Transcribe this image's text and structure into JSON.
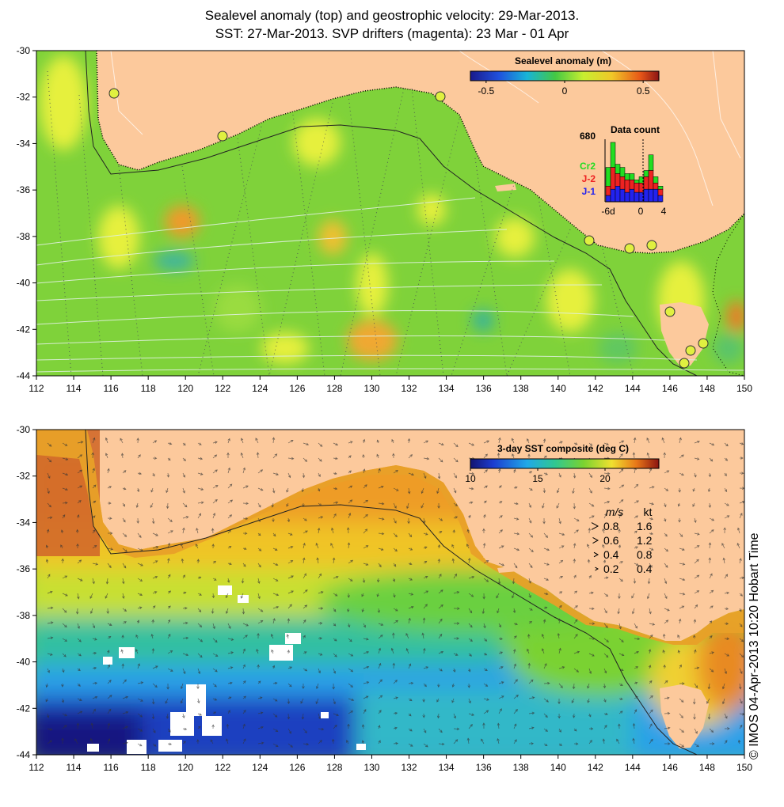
{
  "header": {
    "title_line1": "Sealevel anomaly (top) and geostrophic velocity: 29-Mar-2013.",
    "title_line2": "SST: 27-Mar-2013. SVP drifters (magenta): 23 Mar - 01 Apr"
  },
  "axes": {
    "x_ticks": [
      "112",
      "114",
      "116",
      "118",
      "120",
      "122",
      "124",
      "126",
      "128",
      "130",
      "132",
      "134",
      "136",
      "138",
      "140",
      "142",
      "144",
      "146",
      "148",
      "150"
    ],
    "y_ticks": [
      "-30",
      "-32",
      "-34",
      "-36",
      "-38",
      "-40",
      "-42",
      "-44"
    ],
    "lon_range": [
      112,
      150
    ],
    "lat_range": [
      -30,
      -44
    ]
  },
  "top_map": {
    "colorbar": {
      "title": "Sealevel anomaly (m)",
      "tick_labels": [
        "-0.5",
        "0",
        "0.5"
      ],
      "tick_values": [
        -0.5,
        0,
        0.5
      ],
      "range": [
        -0.6,
        0.6
      ]
    },
    "data_count": {
      "title": "Data count",
      "max_label": "680",
      "legend": [
        {
          "label": "Cr2",
          "color": "#22dd22"
        },
        {
          "label": "J-2",
          "color": "#ee2222"
        },
        {
          "label": "J-1",
          "color": "#2222ee"
        }
      ],
      "x_labels": [
        "-6d",
        "0",
        "4"
      ]
    }
  },
  "bottom_map": {
    "colorbar": {
      "title": "3-day SST composite (deg C)",
      "tick_labels": [
        "10",
        "15",
        "20"
      ],
      "tick_values": [
        10,
        15,
        20
      ],
      "range": [
        10,
        24
      ]
    },
    "velocity_legend": {
      "header_ms": "m/s",
      "header_kt": "kt",
      "rows": [
        {
          "ms": "0.8",
          "kt": "1.6"
        },
        {
          "ms": "0.6",
          "kt": "1.2"
        },
        {
          "ms": "0.4",
          "kt": "0.8"
        },
        {
          "ms": "0.2",
          "kt": "0.4"
        }
      ]
    }
  },
  "credit": "© IMOS 04-Apr-2013 10:20 Hobart Time",
  "colors": {
    "land": "#fcc99c",
    "ocean_green": "#7fd23a",
    "ocean_yellow": "#e6f03c",
    "sst_orange": "#f0a020",
    "sst_blue": "#2aa0e8"
  }
}
